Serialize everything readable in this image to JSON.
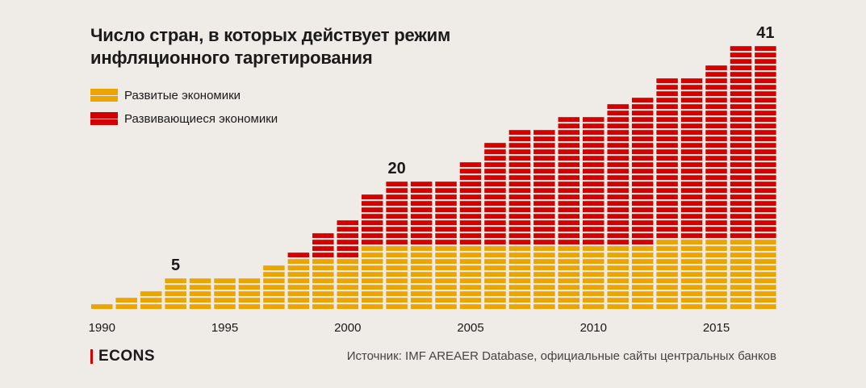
{
  "brand": {
    "name": "ECONS",
    "accent": "#d40000"
  },
  "source": "Источник: IMF AREAER Database, официальные сайты центральных банков",
  "chart_data": {
    "type": "bar",
    "stacked": true,
    "title": "Число стран, в которых действует режим инфляционного таргетирования",
    "title_lines": [
      "Число стран, в которых действует режим",
      "инфляционного таргетирования"
    ],
    "legend": [
      {
        "name": "Развитые экономики",
        "color": "#eba400"
      },
      {
        "name": "Развивающиеся экономики",
        "color": "#d40000"
      }
    ],
    "legend_position": "top-left",
    "grid": false,
    "categories": [
      1990,
      1991,
      1992,
      1993,
      1994,
      1995,
      1996,
      1997,
      1998,
      1999,
      2000,
      2001,
      2002,
      2003,
      2004,
      2005,
      2006,
      2007,
      2008,
      2009,
      2010,
      2011,
      2012,
      2013,
      2014,
      2015,
      2016,
      2017
    ],
    "series": [
      {
        "name": "Развитые экономики",
        "color": "#eba400",
        "values": [
          1,
          2,
          3,
          5,
          5,
          5,
          5,
          7,
          8,
          8,
          8,
          10,
          10,
          10,
          10,
          10,
          10,
          10,
          10,
          10,
          10,
          10,
          10,
          11,
          11,
          11,
          11,
          11
        ]
      },
      {
        "name": "Развивающиеся экономики",
        "color": "#d40000",
        "values": [
          0,
          0,
          0,
          0,
          0,
          0,
          0,
          0,
          1,
          4,
          6,
          8,
          10,
          10,
          10,
          13,
          16,
          18,
          18,
          20,
          20,
          22,
          23,
          25,
          25,
          27,
          30,
          30
        ]
      }
    ],
    "x_tick_labels": [
      "1990",
      "1995",
      "2000",
      "2005",
      "2010",
      "2015"
    ],
    "annotations": [
      {
        "category": 1993,
        "text": "5"
      },
      {
        "category": 2002,
        "text": "20"
      },
      {
        "category": 2017,
        "text": "41"
      }
    ],
    "ylim": [
      0,
      41
    ]
  }
}
